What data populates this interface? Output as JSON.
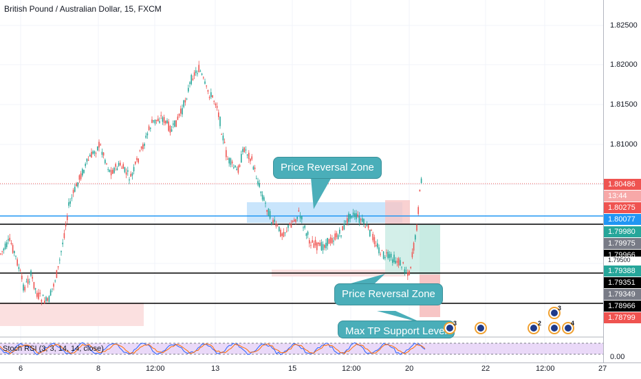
{
  "chart": {
    "title": "British Pound / Australian Dollar, 15, FXCM",
    "indicator_label": "Stoch RSI (3, 3, 14, 14, close)",
    "indicator_zero": "0.00"
  },
  "price_axis": {
    "ticks": [
      "1.82500",
      "1.82000",
      "1.81500",
      "1.81000"
    ]
  },
  "price_tags": [
    {
      "value": "1.80486",
      "bg": "#ef5350",
      "fg": "#ffffff"
    },
    {
      "value": "13:44",
      "bg": "#f7a8a8",
      "fg": "#ffffff"
    },
    {
      "value": "1.80275",
      "bg": "#ef5350",
      "fg": "#ffffff"
    },
    {
      "value": "1.80077",
      "bg": "#2196f3",
      "fg": "#ffffff"
    },
    {
      "value": "1.79980",
      "bg": "#26a69a",
      "fg": "#ffffff"
    },
    {
      "value": "1.79975",
      "bg": "#787b86",
      "fg": "#ffffff"
    },
    {
      "value": "1.79966",
      "bg": "#000000",
      "fg": "#ffffff"
    },
    {
      "value": "1.79500",
      "bg": "#ffffff",
      "fg": "#131722"
    },
    {
      "value": "1.79388",
      "bg": "#26a69a",
      "fg": "#ffffff"
    },
    {
      "value": "1.79351",
      "bg": "#000000",
      "fg": "#ffffff"
    },
    {
      "value": "1.79349",
      "bg": "#787b86",
      "fg": "#ffffff"
    },
    {
      "value": "1.78966",
      "bg": "#000000",
      "fg": "#ffffff"
    },
    {
      "value": "1.78799",
      "bg": "#ef5350",
      "fg": "#ffffff"
    }
  ],
  "time_axis": {
    "labels": [
      "6",
      "8",
      "12:00",
      "13",
      "15",
      "12:00",
      "20",
      "22",
      "12:00",
      "27"
    ]
  },
  "callouts": {
    "upper": "Price Reversal Zone",
    "lower": "Price Reversal Zone",
    "support": "Max TP Support Level"
  },
  "events": [
    {
      "icon": "flag-uk-icon",
      "count": "3"
    },
    {
      "icon": "flag-au-icon",
      "count": ""
    },
    {
      "icon": "flag-uk-icon",
      "count": "2"
    },
    {
      "icon": "flag-uk-icon",
      "count": ""
    },
    {
      "icon": "flag-uk-icon",
      "count": "4"
    },
    {
      "icon": "flag-au-icon",
      "count": "3"
    }
  ],
  "colors": {
    "bull": "#26a69a",
    "bear": "#ef5350",
    "callout": "#4aaeb9",
    "resistance_zone": "#bbdefb",
    "support_zone": "#fbe0e0",
    "indicator_bg": "#e1c9f5"
  }
}
